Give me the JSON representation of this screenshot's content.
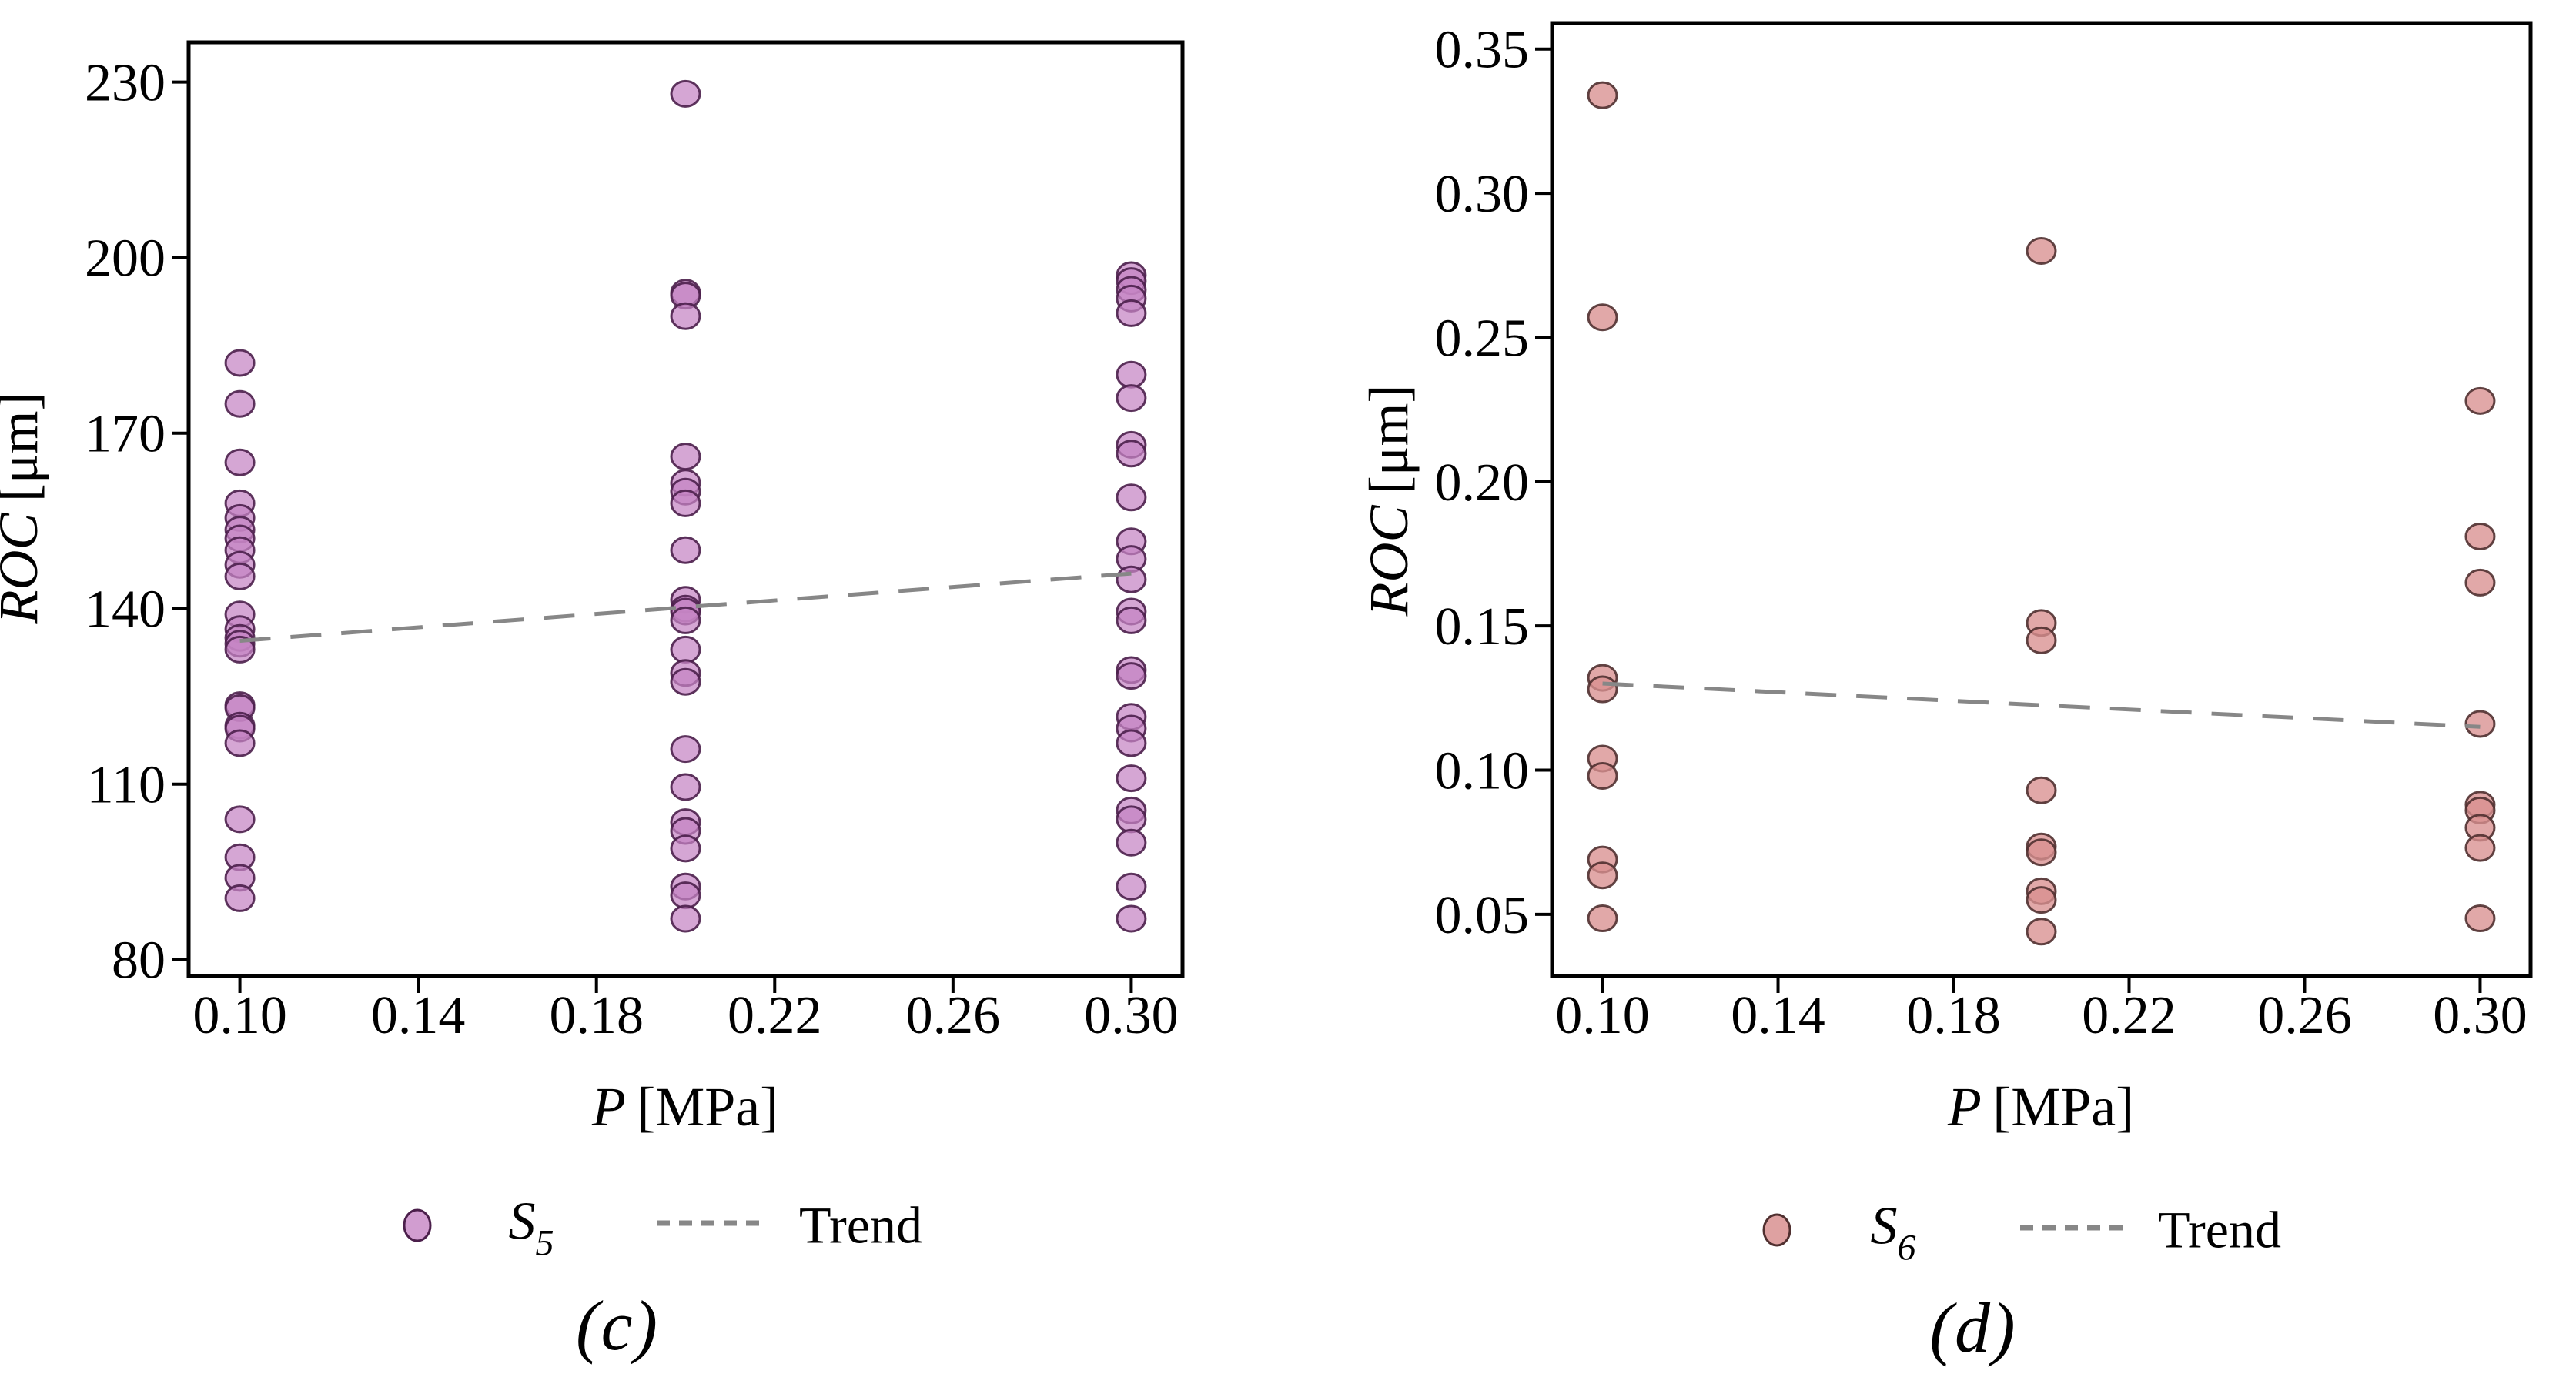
{
  "page": {
    "background": "#ffffff"
  },
  "chart_data": [
    {
      "type": "scatter",
      "panel": "c",
      "caption": "(c)",
      "xlabel": {
        "var": "P",
        "unit": "[MPa]"
      },
      "ylabel": {
        "var": "ROC",
        "unit": "[μm]"
      },
      "xlim": [
        0.0885,
        0.3115
      ],
      "ylim": [
        77.2,
        236.8
      ],
      "xticks": [
        0.1,
        0.14,
        0.18,
        0.22,
        0.26,
        0.3
      ],
      "xtick_labels": [
        "0.10",
        "0.14",
        "0.18",
        "0.22",
        "0.26",
        "0.30"
      ],
      "yticks": [
        230,
        200,
        170,
        140,
        110,
        80
      ],
      "ytick_labels": [
        "230",
        "200",
        "170",
        "140",
        "110",
        "80"
      ],
      "grid": false,
      "legend_position": "below",
      "series": [
        {
          "name": "S5",
          "label": {
            "base": "S",
            "sub": "5"
          },
          "marker": "circle",
          "fill": "#c584c4",
          "edge": "#4b1f4b",
          "opacity": 0.72,
          "groups": [
            {
              "x": 0.1,
              "y": [
                182,
                175,
                165,
                158,
                155.5,
                153.5,
                152,
                150,
                147.5,
                145.5,
                139,
                136.5,
                135,
                134,
                133,
                123.5,
                123,
                120,
                119.5,
                117,
                104,
                97.5,
                94,
                90.5
              ]
            },
            {
              "x": 0.2,
              "y": [
                228,
                194,
                193.5,
                190,
                166,
                161.5,
                160,
                158,
                150,
                141.5,
                140,
                139.5,
                138,
                133,
                129,
                127.5,
                116,
                109.5,
                103.5,
                102,
                99,
                92.5,
                91,
                87
              ]
            },
            {
              "x": 0.3,
              "y": [
                197,
                196,
                194.5,
                193,
                190.5,
                180,
                176,
                168,
                166.5,
                159,
                151.5,
                148.5,
                145,
                139.5,
                138,
                129.5,
                128.5,
                121.5,
                119.5,
                117,
                111,
                105.5,
                104,
                100,
                92.5,
                87
              ]
            }
          ]
        }
      ],
      "trend": {
        "label": "Trend",
        "color": "#878787",
        "x": [
          0.1,
          0.3
        ],
        "y": [
          134.5,
          146
        ]
      }
    },
    {
      "type": "scatter",
      "panel": "d",
      "caption": "(d)",
      "xlabel": {
        "var": "P",
        "unit": "[MPa]"
      },
      "ylabel": {
        "var": "ROC",
        "unit": "[μm]"
      },
      "xlim": [
        0.0885,
        0.3115
      ],
      "ylim": [
        0.0286,
        0.359
      ],
      "xticks": [
        0.1,
        0.14,
        0.18,
        0.22,
        0.26,
        0.3
      ],
      "xtick_labels": [
        "0.10",
        "0.14",
        "0.18",
        "0.22",
        "0.26",
        "0.30"
      ],
      "yticks": [
        0.35,
        0.3,
        0.25,
        0.2,
        0.15,
        0.1,
        0.05
      ],
      "ytick_labels": [
        "0.35",
        "0.30",
        "0.25",
        "0.20",
        "0.15",
        "0.10",
        "0.05"
      ],
      "grid": false,
      "legend_position": "below",
      "series": [
        {
          "name": "S6",
          "label": {
            "base": "S",
            "sub": "6"
          },
          "marker": "circle",
          "fill": "#d89090",
          "edge": "#503030",
          "opacity": 0.78,
          "groups": [
            {
              "x": 0.1,
              "y": [
                0.334,
                0.257,
                0.132,
                0.128,
                0.104,
                0.098,
                0.069,
                0.0635,
                0.0486
              ]
            },
            {
              "x": 0.2,
              "y": [
                0.28,
                0.151,
                0.145,
                0.093,
                0.0735,
                0.0715,
                0.058,
                0.055,
                0.044
              ]
            },
            {
              "x": 0.3,
              "y": [
                0.228,
                0.181,
                0.165,
                0.116,
                0.088,
                0.086,
                0.08,
                0.073,
                0.0486
              ]
            }
          ]
        }
      ],
      "trend": {
        "label": "Trend",
        "color": "#878787",
        "x": [
          0.1,
          0.3
        ],
        "y": [
          0.13,
          0.115
        ]
      }
    }
  ]
}
